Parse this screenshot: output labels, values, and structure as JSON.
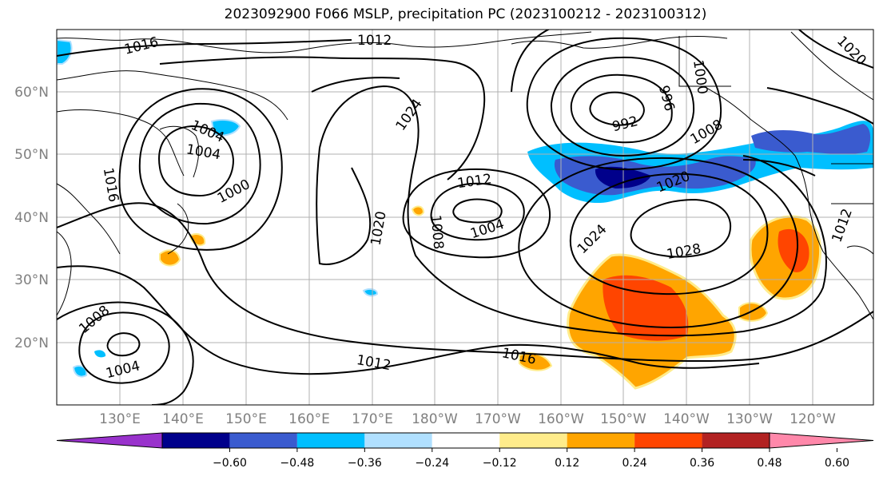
{
  "title": "2023092900 F066 MSLP, precipitation PC (2023100212 - 2023100312)",
  "map": {
    "lat_labels": [
      "60°N",
      "50°N",
      "40°N",
      "30°N",
      "20°N"
    ],
    "lon_labels": [
      "130°E",
      "140°E",
      "150°E",
      "160°E",
      "170°E",
      "180°W",
      "170°W",
      "160°W",
      "150°W",
      "140°W",
      "130°W",
      "120°W"
    ],
    "isobar_labels": [
      {
        "text": "1016"
      },
      {
        "text": "1012"
      },
      {
        "text": "1004"
      },
      {
        "text": "1000"
      },
      {
        "text": "996"
      },
      {
        "text": "992"
      },
      {
        "text": "1008"
      },
      {
        "text": "1020"
      },
      {
        "text": "1024"
      },
      {
        "text": "1004"
      },
      {
        "text": "1000"
      },
      {
        "text": "1016"
      },
      {
        "text": "1012"
      },
      {
        "text": "1004"
      },
      {
        "text": "1008"
      },
      {
        "text": "1020"
      },
      {
        "text": "1024"
      },
      {
        "text": "1028"
      },
      {
        "text": "1008"
      },
      {
        "text": "1004"
      },
      {
        "text": "1012"
      },
      {
        "text": "1016"
      },
      {
        "text": "1020"
      },
      {
        "text": "1012"
      }
    ]
  },
  "colorbar": {
    "colors": [
      "#9932cc",
      "#00008b",
      "#3a5bcf",
      "#00bfff",
      "#b0e0ff",
      "#ffffff",
      "#ffec8b",
      "#ffa500",
      "#ff4500",
      "#b22222",
      "#ff88aa"
    ],
    "tick_labels": [
      "−0.60",
      "−0.48",
      "−0.36",
      "−0.24",
      "−0.12",
      "0.12",
      "0.24",
      "0.36",
      "0.48",
      "0.60"
    ]
  }
}
